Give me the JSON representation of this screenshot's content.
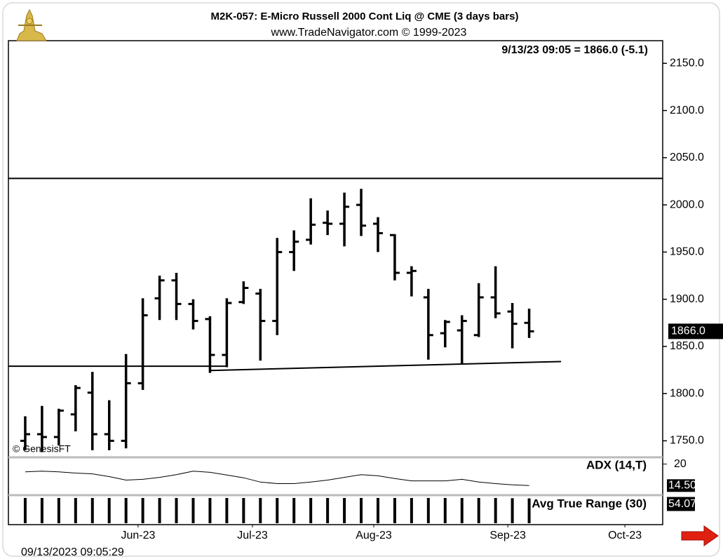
{
  "chart_data": {
    "type": "ohlc",
    "title": "M2K-057:  E-Micro Russell 2000 Cont Liq @ CME  (3 days bars)",
    "subtitle": "www.TradeNavigator.com © 1999-2023",
    "last_quote": "9/13/23 09:05 = 1866.0 (-5.1)",
    "last_price_label": "1866.0",
    "copyright": "© GenesisFT",
    "timestamp": "09/13/2023 09:05:29",
    "open": [
      1750,
      1757,
      1754,
      1778,
      1801,
      1757,
      1750,
      1811,
      1901,
      1920,
      1895,
      1879,
      1841,
      1897,
      1906,
      1877,
      1950,
      1963,
      1981,
      1980,
      2000,
      1980,
      1968,
      1928,
      1902,
      1864,
      1867,
      1862,
      1902,
      1887,
      1875
    ],
    "high": [
      1776,
      1787,
      1784,
      1809,
      1823,
      1793,
      1842,
      1901,
      1925,
      1928,
      1900,
      1882,
      1901,
      1919,
      1911,
      1965,
      1973,
      2007,
      1994,
      2013,
      2017,
      1987,
      1969,
      1935,
      1911,
      1878,
      1883,
      1917,
      1935,
      1896,
      1890
    ],
    "low": [
      1740,
      1738,
      1745,
      1760,
      1740,
      1740,
      1742,
      1804,
      1878,
      1878,
      1868,
      1822,
      1828,
      1895,
      1835,
      1862,
      1930,
      1958,
      1968,
      1956,
      1967,
      1950,
      1920,
      1903,
      1836,
      1849,
      1831,
      1860,
      1880,
      1848,
      1859
    ],
    "close": [
      1757,
      1754,
      1782,
      1806,
      1757,
      1750,
      1811,
      1883,
      1920,
      1895,
      1877,
      1841,
      1896,
      1912,
      1877,
      1950,
      1961,
      1979,
      1980,
      1998,
      1978,
      1970,
      1928,
      1930,
      1862,
      1876,
      1877,
      1902,
      1885,
      1874,
      1866
    ],
    "color": "#000000",
    "xlim": [
      -1,
      37.95
    ],
    "xticks": [
      {
        "value": 6.72,
        "label": "Jun-23"
      },
      {
        "value": 13.53,
        "label": "Jul-23"
      },
      {
        "value": 20.75,
        "label": "Aug-23"
      },
      {
        "value": 28.73,
        "label": "Sep-23"
      },
      {
        "value": 35.7,
        "label": "Oct-23"
      }
    ],
    "ylim": [
      1734,
      2174
    ],
    "yticks": [
      {
        "value": 1750,
        "label": "1750.0"
      },
      {
        "value": 1800,
        "label": "1800.0"
      },
      {
        "value": 1850,
        "label": "1850.0"
      },
      {
        "value": 1900,
        "label": "1900.0"
      },
      {
        "value": 1950,
        "label": "1950.0"
      },
      {
        "value": 2000,
        "label": "2000.0"
      },
      {
        "value": 2050,
        "label": "2050.0"
      },
      {
        "value": 2100,
        "label": "2100.0"
      },
      {
        "value": 2150,
        "label": "2150.0"
      }
    ],
    "lines": [
      {
        "x": [
          -1,
          37.95
        ],
        "y": [
          2028,
          2028
        ]
      },
      {
        "x": [
          -1,
          11.94
        ],
        "y": [
          1829,
          1829
        ]
      },
      {
        "x": [
          11.02,
          31.9
        ],
        "y": [
          1824.5,
          1834
        ]
      }
    ],
    "adx": {
      "label": "ADX (14,T)",
      "values": [
        18.0,
        18.2,
        18.0,
        17.7,
        17.5,
        16.8,
        15.9,
        16.1,
        16.6,
        17.3,
        18.2,
        17.9,
        17.2,
        16.5,
        15.4,
        15.0,
        15.0,
        15.4,
        15.9,
        16.6,
        17.3,
        17.0,
        16.3,
        15.7,
        15.7,
        15.7,
        16.1,
        15.4,
        15.0,
        14.7,
        14.5
      ],
      "last_label": "14.50",
      "ylim": [
        12.4,
        21.2
      ],
      "yticks": [
        20
      ],
      "color": "#000000"
    },
    "atr": {
      "label": "Avg True Range (30)",
      "values": [
        55,
        55,
        55,
        55,
        55,
        55,
        55,
        55,
        55,
        55,
        55,
        55,
        55,
        55,
        55,
        55,
        55,
        55,
        55,
        55,
        55,
        55,
        55,
        55,
        55,
        55,
        55,
        55,
        55,
        54.5,
        54.07
      ],
      "last_label": "54.07",
      "ylim": [
        0,
        58
      ],
      "color": "#000000"
    }
  }
}
